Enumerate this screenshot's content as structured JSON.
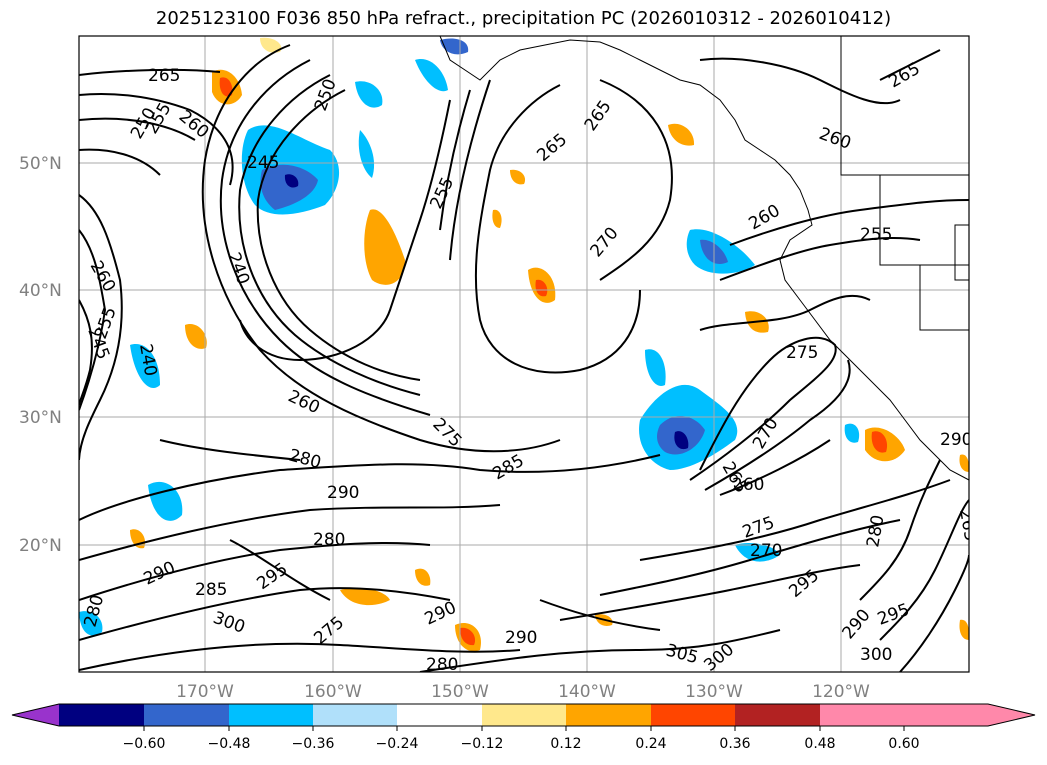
{
  "title": "2025123100 F036 850 hPa refract., precipitation PC (2026010312 - 2026010412)",
  "map": {
    "lat_labels": [
      "50°N",
      "40°N",
      "30°N",
      "20°N"
    ],
    "lon_labels": [
      "170°W",
      "160°W",
      "150°W",
      "140°W",
      "130°W",
      "120°W"
    ],
    "contour_labels": [
      "265",
      "260",
      "250",
      "255",
      "245",
      "240",
      "260",
      "255",
      "245",
      "240",
      "260",
      "280",
      "275",
      "290",
      "280",
      "285",
      "290",
      "295",
      "280",
      "285",
      "300",
      "275",
      "290",
      "280",
      "290",
      "305",
      "300",
      "265",
      "255",
      "265",
      "270",
      "250",
      "255",
      "260",
      "275",
      "270",
      "265",
      "260",
      "275",
      "270",
      "295",
      "300",
      "295",
      "290",
      "280",
      "265",
      "265",
      "290",
      "260"
    ]
  },
  "colorbar": {
    "tick_labels": [
      "−0.60",
      "−0.48",
      "−0.36",
      "−0.24",
      "−0.12",
      "0.12",
      "0.24",
      "0.36",
      "0.48",
      "0.60"
    ],
    "colors": [
      "#9933cc",
      "#000080",
      "#3366cc",
      "#00bfff",
      "#b0e0fa",
      "#ffffff",
      "#ffe88c",
      "#ffa500",
      "#ff4500",
      "#b22222",
      "#ff88aa"
    ]
  }
}
